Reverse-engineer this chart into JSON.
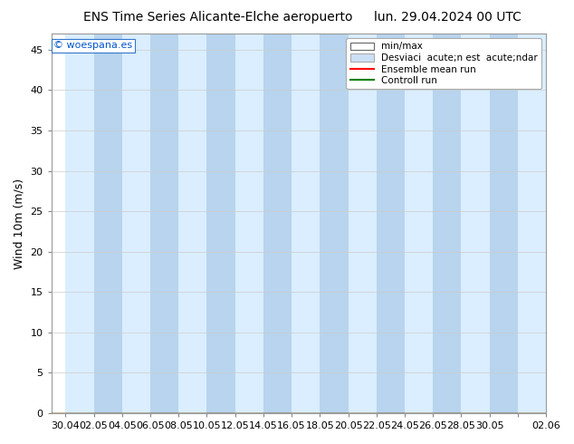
{
  "title_left": "ENS Time Series Alicante-Elche aeropuerto",
  "title_right": "lun. 29.04.2024 00 UTC",
  "ylabel": "Wind 10m (m/s)",
  "ylim": [
    0,
    47
  ],
  "yticks": [
    0,
    5,
    10,
    15,
    20,
    25,
    30,
    35,
    40,
    45
  ],
  "background_color": "#ffffff",
  "plot_bg_color": "#ffffff",
  "watermark": "© woespana.es",
  "legend_labels": [
    "min/max",
    "Desviaci  acute;n est  acute;ndar",
    "Ensemble mean run",
    "Controll run"
  ],
  "minmax_color": "#ddeeff",
  "std_color": "#cce0f5",
  "ensemble_mean_color": "#ff0000",
  "control_run_color": "#008000",
  "light_band_color": "#daeeff",
  "dark_band_color": "#b8d4ee",
  "num_days": 35,
  "grid_color": "#cccccc",
  "title_fontsize": 10,
  "axis_fontsize": 9,
  "tick_fontsize": 8,
  "xticklabels": [
    "30.04",
    "02.05",
    "04.05",
    "06.05",
    "08.05",
    "10.05",
    "12.05",
    "14.05",
    "16.05",
    "18.05",
    "20.05",
    "22.05",
    "24.05",
    "26.05",
    "28.05",
    "30.05",
    "",
    "02.06"
  ],
  "xtick_days": [
    1,
    3,
    5,
    7,
    9,
    11,
    13,
    15,
    17,
    19,
    21,
    23,
    25,
    27,
    29,
    31,
    33,
    35
  ],
  "light_bands": [
    1,
    5,
    9,
    13,
    17,
    21,
    25,
    29,
    33
  ],
  "dark_bands": [
    3,
    7,
    11,
    15,
    19,
    23,
    27,
    31
  ],
  "watermark_color": "#0055cc",
  "watermark_bg": "#ffffff",
  "watermark_border": "#3377cc"
}
